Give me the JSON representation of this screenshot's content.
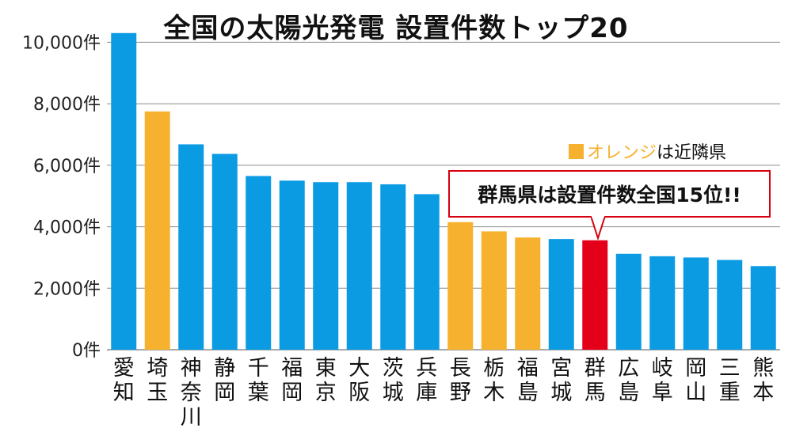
{
  "title": "全国の太陽光発電 設置件数トップ20",
  "legend": {
    "highlight": "オレンジ",
    "rest": "は近隣県",
    "highlight_color": "#F6B22E"
  },
  "callout": "群馬県は設置件数全国15位!!",
  "colors": {
    "default": "#0B9BE3",
    "neighbor": "#F6B22E",
    "target": "#E5001A",
    "grid": "#8c8c8c"
  },
  "chart_data": {
    "type": "bar",
    "title": "全国の太陽光発電 設置件数トップ20",
    "ylim": [
      0,
      10500
    ],
    "yticks": [
      0,
      2000,
      4000,
      6000,
      8000,
      10000
    ],
    "ytick_labels": [
      "0件",
      "2,000件",
      "4,000件",
      "6,000件",
      "8,000件",
      "10,000件"
    ],
    "grid": true,
    "categories": [
      "愛知",
      "埼玉",
      "神奈川",
      "静岡",
      "千葉",
      "福岡",
      "東京",
      "大阪",
      "茨城",
      "兵庫",
      "長野",
      "栃木",
      "福島",
      "宮城",
      "群馬",
      "広島",
      "岐阜",
      "岡山",
      "三重",
      "熊本"
    ],
    "values": [
      10300,
      7750,
      6680,
      6370,
      5650,
      5500,
      5450,
      5450,
      5380,
      5060,
      4150,
      3850,
      3650,
      3600,
      3560,
      3120,
      3040,
      3000,
      2920,
      2720
    ],
    "colors": [
      "#0B9BE3",
      "#F6B22E",
      "#0B9BE3",
      "#0B9BE3",
      "#0B9BE3",
      "#0B9BE3",
      "#0B9BE3",
      "#0B9BE3",
      "#0B9BE3",
      "#0B9BE3",
      "#F6B22E",
      "#F6B22E",
      "#F6B22E",
      "#0B9BE3",
      "#E5001A",
      "#0B9BE3",
      "#0B9BE3",
      "#0B9BE3",
      "#0B9BE3",
      "#0B9BE3"
    ]
  }
}
